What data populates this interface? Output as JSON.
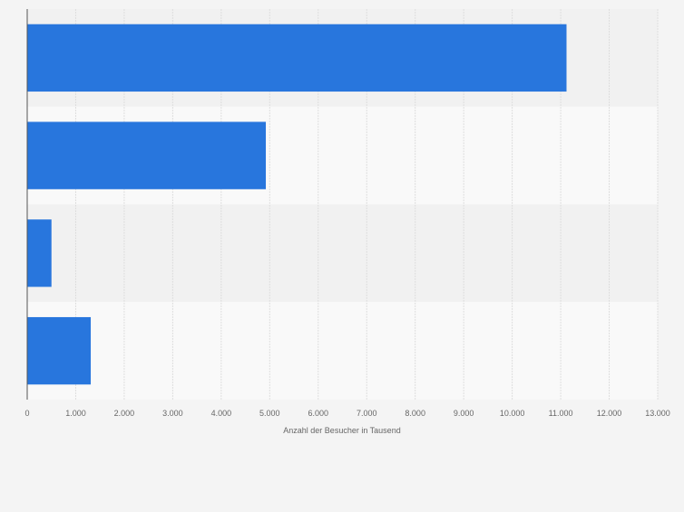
{
  "chart_data": {
    "type": "bar",
    "orientation": "horizontal",
    "categories": [
      "",
      "",
      "",
      ""
    ],
    "values": [
      11120,
      4920,
      500,
      1310
    ],
    "xlabel": "Anzahl der Besucher in Tausend",
    "ylabel": "",
    "xlim": [
      0,
      13000
    ],
    "xticks": [
      0,
      1000,
      2000,
      3000,
      4000,
      5000,
      6000,
      7000,
      8000,
      9000,
      10000,
      11000,
      12000,
      13000
    ],
    "xtick_labels": [
      "0",
      "1.000",
      "2.000",
      "3.000",
      "4.000",
      "5.000",
      "6.000",
      "7.000",
      "8.000",
      "9.000",
      "10.000",
      "11.000",
      "12.000",
      "13.000"
    ],
    "grid": true,
    "legend": "none",
    "colors": {
      "bar": "#2876dd",
      "band_dark": "#f1f1f1",
      "band_light": "#f9f9f9",
      "grid": "#dedede",
      "axis": "#555555",
      "tick_text": "#666666"
    }
  }
}
